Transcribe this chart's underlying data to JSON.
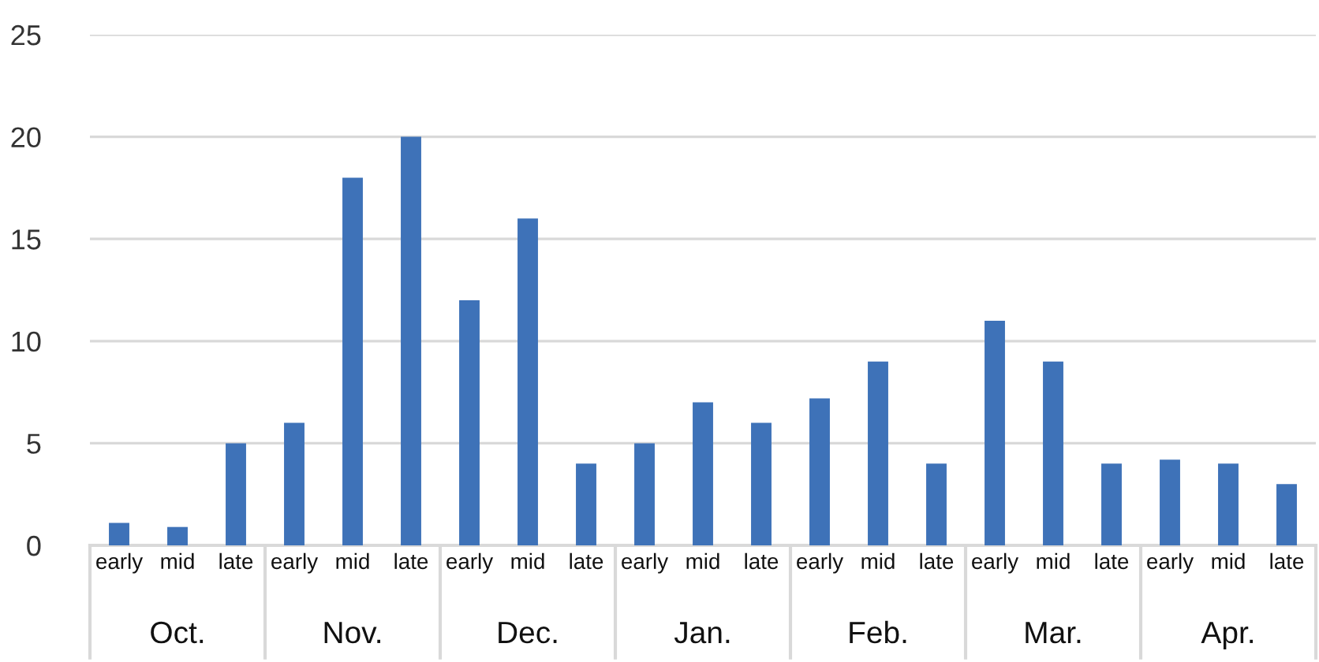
{
  "chart_data": {
    "type": "bar",
    "categories": [
      "early",
      "mid",
      "late",
      "early",
      "mid",
      "late",
      "early",
      "mid",
      "late",
      "early",
      "mid",
      "late",
      "early",
      "mid",
      "late",
      "early",
      "mid",
      "late",
      "early",
      "mid",
      "late"
    ],
    "values": [
      1.1,
      0.9,
      5,
      6,
      18,
      20,
      12,
      16,
      4,
      5,
      7,
      6,
      7.2,
      9,
      4,
      11,
      9,
      4,
      4.2,
      4,
      3
    ],
    "color": "#3e72b8",
    "annotations": [
      "Oct.",
      "Nov.",
      "Dec.",
      "Jan.",
      "Feb.",
      "Mar.",
      "Apr."
    ],
    "ylim": [
      0,
      25
    ],
    "yticks": [
      0,
      5,
      10,
      15,
      20,
      25
    ],
    "grid": "y"
  }
}
